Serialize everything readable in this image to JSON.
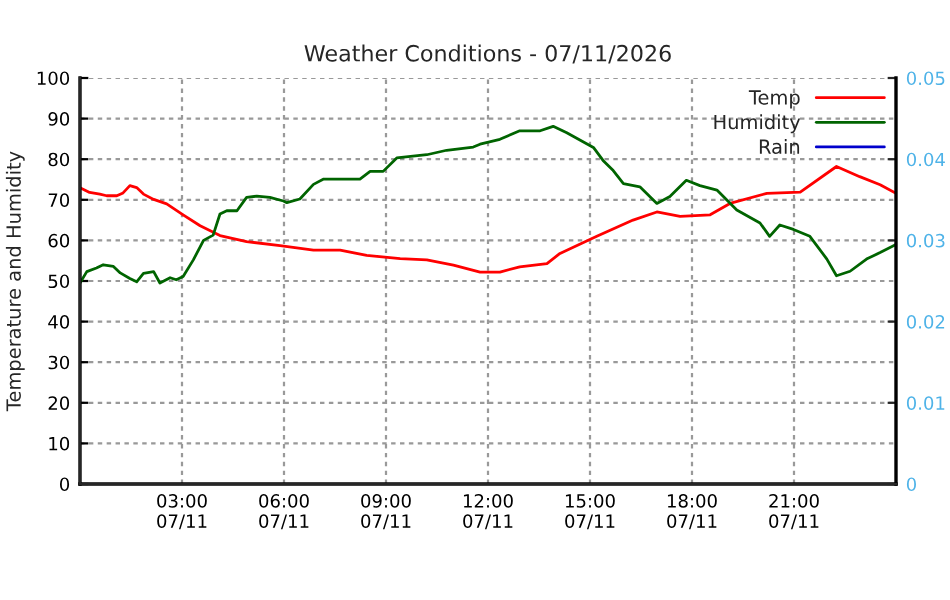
{
  "chart_data": {
    "type": "line",
    "title": "Weather Conditions - 07/11/2026",
    "ylabel": "Temperature and Humidity",
    "xlim": [
      "2026-07-11T00:00",
      "2026-07-12T00:00"
    ],
    "xticks": [
      {
        "value": "2026-07-11T03:00",
        "label": "03:00\n07/11"
      },
      {
        "value": "2026-07-11T06:00",
        "label": "06:00\n07/11"
      },
      {
        "value": "2026-07-11T09:00",
        "label": "09:00\n07/11"
      },
      {
        "value": "2026-07-11T12:00",
        "label": "12:00\n07/11"
      },
      {
        "value": "2026-07-11T15:00",
        "label": "15:00\n07/11"
      },
      {
        "value": "2026-07-11T18:00",
        "label": "18:00\n07/11"
      },
      {
        "value": "2026-07-11T21:00",
        "label": "21:00\n07/11"
      }
    ],
    "ylim": [
      0,
      100
    ],
    "yticks": [
      0,
      10,
      20,
      30,
      40,
      50,
      60,
      70,
      80,
      90,
      100
    ],
    "y2lim": [
      0,
      0.05
    ],
    "y2ticks": [
      0,
      0.01,
      0.02,
      0.03,
      0.04,
      0.05
    ],
    "grid": true,
    "legend": "top right",
    "line_style": "solid",
    "marker": "none",
    "series": [
      {
        "name": "Temp",
        "color": "#ff0000",
        "x": [
          "2026-07-11T00:00",
          "2026-07-11T00:17",
          "2026-07-11T00:35",
          "2026-07-11T00:47",
          "2026-07-11T01:05",
          "2026-07-11T01:16",
          "2026-07-11T01:28",
          "2026-07-11T01:40",
          "2026-07-11T01:52",
          "2026-07-11T02:10",
          "2026-07-11T02:33",
          "2026-07-11T03:02",
          "2026-07-11T03:32",
          "2026-07-11T04:07",
          "2026-07-11T04:54",
          "2026-07-11T05:53",
          "2026-07-11T06:52",
          "2026-07-11T07:39",
          "2026-07-11T08:26",
          "2026-07-11T09:25",
          "2026-07-11T10:12",
          "2026-07-11T10:59",
          "2026-07-11T11:46",
          "2026-07-11T12:21",
          "2026-07-11T12:56",
          "2026-07-11T13:44",
          "2026-07-11T14:07",
          "2026-07-11T15:12",
          "2026-07-11T16:16",
          "2026-07-11T16:58",
          "2026-07-11T17:39",
          "2026-07-11T18:32",
          "2026-07-11T19:07",
          "2026-07-11T20:12",
          "2026-07-11T21:11",
          "2026-07-11T22:15",
          "2026-07-11T22:56",
          "2026-07-11T23:32",
          "2026-07-12T00:00"
        ],
        "values": [
          73,
          71.8,
          71.4,
          71,
          71,
          71.7,
          73.5,
          73,
          71.4,
          70.1,
          69,
          66.3,
          63.6,
          61.2,
          59.7,
          58.7,
          57.6,
          57.6,
          56.3,
          55.5,
          55.2,
          53.9,
          52.2,
          52.2,
          53.5,
          54.3,
          56.8,
          61,
          65,
          67,
          65.9,
          66.3,
          69.1,
          71.6,
          71.9,
          78.2,
          75.7,
          73.7,
          71.6
        ]
      },
      {
        "name": "Humidity",
        "color": "#006400",
        "x": [
          "2026-07-11T00:00",
          "2026-07-11T00:12",
          "2026-07-11T00:29",
          "2026-07-11T00:41",
          "2026-07-11T00:59",
          "2026-07-11T01:11",
          "2026-07-11T01:28",
          "2026-07-11T01:40",
          "2026-07-11T01:52",
          "2026-07-11T02:10",
          "2026-07-11T02:21",
          "2026-07-11T02:39",
          "2026-07-11T02:50",
          "2026-07-11T03:02",
          "2026-07-11T03:20",
          "2026-07-11T03:38",
          "2026-07-11T03:55",
          "2026-07-11T04:07",
          "2026-07-11T04:19",
          "2026-07-11T04:37",
          "2026-07-11T04:54",
          "2026-07-11T05:12",
          "2026-07-11T05:35",
          "2026-07-11T05:59",
          "2026-07-11T06:05",
          "2026-07-11T06:28",
          "2026-07-11T06:52",
          "2026-07-11T07:10",
          "2026-07-11T08:14",
          "2026-07-11T08:32",
          "2026-07-11T08:55",
          "2026-07-11T09:19",
          "2026-07-11T10:12",
          "2026-07-11T10:47",
          "2026-07-11T11:34",
          "2026-07-11T11:46",
          "2026-07-11T12:21",
          "2026-07-11T12:56",
          "2026-07-11T13:32",
          "2026-07-11T13:55",
          "2026-07-11T14:19",
          "2026-07-11T15:06",
          "2026-07-11T15:23",
          "2026-07-11T15:41",
          "2026-07-11T15:59",
          "2026-07-11T16:28",
          "2026-07-11T16:58",
          "2026-07-11T17:21",
          "2026-07-11T17:50",
          "2026-07-11T18:14",
          "2026-07-11T18:44",
          "2026-07-11T19:19",
          "2026-07-11T20:00",
          "2026-07-11T20:17",
          "2026-07-11T20:35",
          "2026-07-11T20:59",
          "2026-07-11T21:28",
          "2026-07-11T21:58",
          "2026-07-11T22:15",
          "2026-07-11T22:39",
          "2026-07-11T23:08",
          "2026-07-11T23:32",
          "2026-07-12T00:00"
        ],
        "values": [
          49.5,
          52.3,
          53.2,
          54,
          53.6,
          52,
          50.6,
          49.8,
          51.9,
          52.3,
          49.5,
          50.8,
          50.3,
          51.1,
          55.2,
          60,
          61.3,
          66.5,
          67.3,
          67.3,
          70.6,
          70.9,
          70.6,
          69.7,
          69.3,
          70.2,
          73.8,
          75.1,
          75.1,
          77,
          77,
          80.3,
          81.1,
          82.2,
          83,
          83.7,
          84.9,
          87,
          87,
          88.1,
          86.5,
          82.9,
          79.7,
          77.2,
          74,
          73.2,
          69.1,
          70.8,
          74.8,
          73.5,
          72.4,
          67.5,
          64.3,
          61,
          63.8,
          62.7,
          61,
          55.4,
          51.3,
          52.4,
          55.4,
          57,
          59
        ]
      },
      {
        "name": "Rain",
        "color": "#0000cc"
      }
    ]
  }
}
